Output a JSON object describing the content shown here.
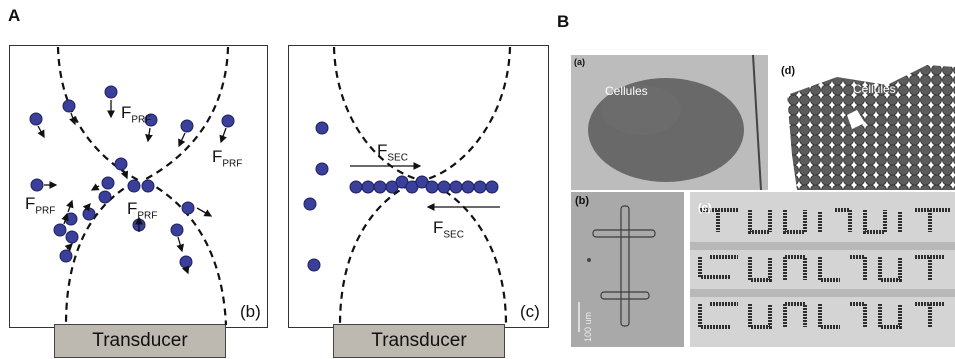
{
  "panel_a": {
    "letter": "A",
    "left_box_tag": "(b)",
    "right_box_tag": "(c)",
    "transducer_left": "Transducer",
    "transducer_right": "Transducer",
    "force_prf": "F",
    "force_prf_sub": "PRF",
    "force_sec": "F",
    "force_sec_sub": "SEC"
  },
  "panel_b": {
    "letter": "B",
    "images": [
      {
        "tag": "(a)",
        "caption": "Cellules"
      },
      {
        "tag": "(d)",
        "caption": "Cellules"
      },
      {
        "tag": "(b)",
        "scalebar": "100 um"
      },
      {
        "tag": "(c)"
      }
    ]
  },
  "colors": {
    "particle": "#3a3f9a",
    "particle_edge": "#1e2160",
    "transducer": "#bdb8b0",
    "micro_bg_a": "#9a9a9a",
    "micro_bg_b": "#a8a8a8"
  }
}
